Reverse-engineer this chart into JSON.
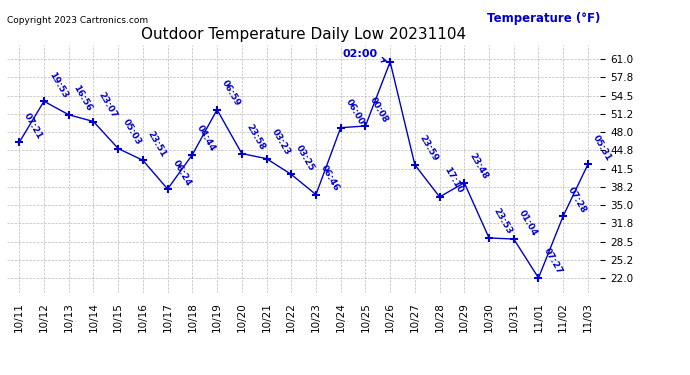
{
  "title": "Outdoor Temperature Daily Low 20231104",
  "ylabel_text": "Temperature (°F)",
  "copyright": "Copyright 2023 Cartronics.com",
  "line_color": "#0000cc",
  "bg_color": "#ffffff",
  "grid_color": "#aaaaaa",
  "x_labels": [
    "10/11",
    "10/12",
    "10/13",
    "10/14",
    "10/15",
    "10/16",
    "10/17",
    "10/18",
    "10/19",
    "10/20",
    "10/21",
    "10/22",
    "10/23",
    "10/24",
    "10/25",
    "10/26",
    "10/27",
    "10/28",
    "10/29",
    "10/30",
    "10/31",
    "11/01",
    "11/02",
    "11/03"
  ],
  "y_values": [
    46.2,
    53.5,
    51.1,
    49.9,
    45.1,
    43.0,
    37.9,
    44.0,
    52.0,
    44.2,
    43.3,
    40.5,
    36.9,
    48.8,
    49.1,
    60.5,
    42.2,
    36.5,
    39.0,
    29.2,
    29.0,
    22.1,
    33.1,
    42.3
  ],
  "time_labels": [
    "07:21",
    "19:53",
    "16:56",
    "23:07",
    "05:03",
    "23:51",
    "06:24",
    "04:44",
    "06:59",
    "23:58",
    "03:23",
    "03:25",
    "06:46",
    "06:00",
    "00:08",
    "02:00",
    "23:59",
    "17:10",
    "23:48",
    "23:53",
    "01:04",
    "07:27",
    "07:28",
    "05:31"
  ],
  "yticks": [
    22.0,
    25.2,
    28.5,
    31.8,
    35.0,
    38.2,
    41.5,
    44.8,
    48.0,
    51.2,
    54.5,
    57.8,
    61.0
  ],
  "ylim": [
    19.5,
    63.5
  ],
  "n_points": 24,
  "peak_idx": 15,
  "peak_label": "02:00"
}
